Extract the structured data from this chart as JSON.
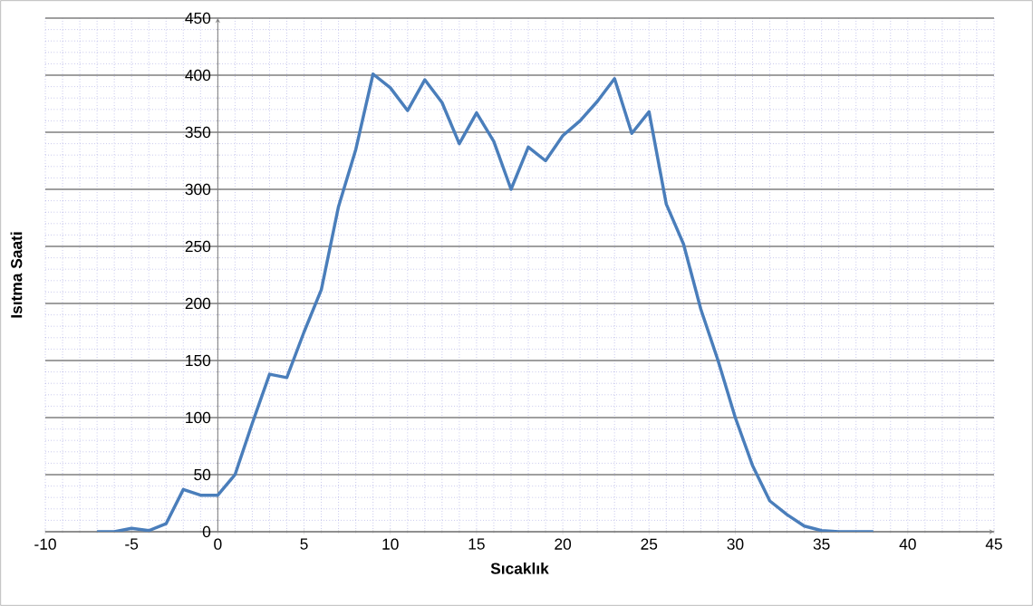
{
  "chart_data": {
    "type": "line",
    "xlabel": "Sıcaklık",
    "ylabel": "Isıtma Saati",
    "x": [
      -7,
      -6,
      -5,
      -4,
      -3,
      -2,
      -1,
      0,
      1,
      2,
      3,
      4,
      5,
      6,
      7,
      8,
      9,
      10,
      11,
      12,
      13,
      14,
      15,
      16,
      17,
      18,
      19,
      20,
      21,
      22,
      23,
      24,
      25,
      26,
      27,
      28,
      29,
      30,
      31,
      32,
      33,
      34,
      35,
      36,
      37,
      38
    ],
    "series": [
      {
        "color": "#4a7ebb",
        "values": [
          0,
          0,
          3,
          1,
          7,
          37,
          32,
          32,
          50,
          95,
          138,
          135,
          175,
          212,
          285,
          335,
          401,
          389,
          369,
          396,
          376,
          340,
          367,
          342,
          300,
          337,
          325,
          347,
          360,
          377,
          397,
          349,
          368,
          287,
          252,
          195,
          150,
          100,
          58,
          27,
          15,
          5,
          1,
          0,
          0,
          0
        ]
      }
    ],
    "xlim": [
      -10,
      45
    ],
    "xticks": [
      -10,
      -5,
      0,
      5,
      10,
      15,
      20,
      25,
      30,
      35,
      40,
      45
    ],
    "ylim": [
      0,
      450
    ],
    "yticks": [
      0,
      50,
      100,
      150,
      200,
      250,
      300,
      350,
      400,
      450
    ],
    "grid": true,
    "marker": "none",
    "line_style": "solid",
    "legend": false
  }
}
